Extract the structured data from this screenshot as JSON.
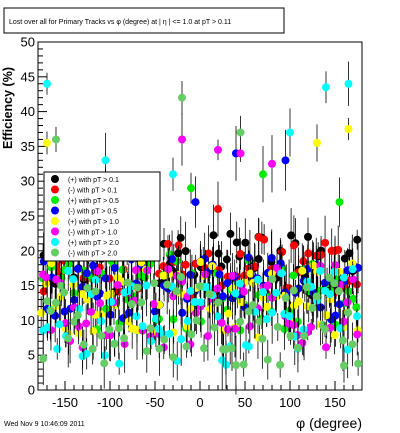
{
  "chart_data": {
    "type": "scatter",
    "title": "Lost over all for Primary Tracks vs φ (degree) at | η | <= 1.0 at pT > 0.11",
    "xlabel": "φ (degree)",
    "ylabel": "Efficiency (%)",
    "xlim": [
      -180,
      180
    ],
    "ylim": [
      0,
      50
    ],
    "xticks": [
      -150,
      -100,
      -50,
      0,
      50,
      100,
      150
    ],
    "yticks": [
      0,
      5,
      10,
      15,
      20,
      25,
      30,
      35,
      40,
      45,
      50
    ],
    "grid": false,
    "legend_position": "left-middle",
    "footer": "Wed Nov  9 10:46:09 2011",
    "colors": {
      "s1": "#000000",
      "s2": "#ff0000",
      "s3": "#00ee00",
      "s4": "#0000ff",
      "s5": "#ffff00",
      "s6": "#ff00ff",
      "s7": "#00ffff",
      "s8": "#66cc66"
    },
    "series": [
      {
        "name": "(+) with pT > 0.1",
        "color": "#000000",
        "seed": 11,
        "base": 18.0,
        "spread": 4.5,
        "extra_x": [
          -40,
          65,
          120
        ],
        "extra_y": [
          21,
          22,
          22
        ]
      },
      {
        "name": "(-) with pT > 0.1",
        "color": "#ff0000",
        "seed": 23,
        "base": 17.5,
        "spread": 4.5,
        "extra_x": [
          -150,
          -60,
          20,
          150
        ],
        "extra_y": [
          24,
          20,
          26,
          20
        ]
      },
      {
        "name": "(+) with pT > 0.5",
        "color": "#00ee00",
        "seed": 37,
        "base": 14.0,
        "spread": 5.5,
        "extra_x": [
          -10,
          70,
          155
        ],
        "extra_y": [
          29,
          31,
          27
        ]
      },
      {
        "name": "(-) with pT > 0.5",
        "color": "#0000ff",
        "seed": 41,
        "base": 15.0,
        "spread": 5.0,
        "extra_x": [
          -105,
          -5,
          40,
          95
        ],
        "extra_y": [
          28,
          27,
          34,
          33
        ]
      },
      {
        "name": "(+) with pT > 1.0",
        "color": "#ffff00",
        "seed": 53,
        "base": 13.0,
        "spread": 5.5,
        "extra_x": [
          -170,
          130,
          165
        ],
        "extra_y": [
          35.5,
          35.5,
          37.5
        ]
      },
      {
        "name": "(-) with pT > 1.0",
        "color": "#ff00ff",
        "seed": 67,
        "base": 12.0,
        "spread": 6.0,
        "extra_x": [
          -20,
          20,
          45,
          80
        ],
        "extra_y": [
          36,
          34.5,
          34,
          32.5
        ]
      },
      {
        "name": "(+) with pT > 2.0",
        "color": "#00ffff",
        "seed": 79,
        "base": 10.5,
        "spread": 7.0,
        "extra_x": [
          -170,
          -105,
          -30,
          100,
          140,
          165
        ],
        "extra_y": [
          44,
          33,
          31,
          37,
          43.5,
          44
        ]
      },
      {
        "name": "(-) with pT > 2.0",
        "color": "#66cc66",
        "seed": 97,
        "base": 10.0,
        "spread": 6.5,
        "extra_x": [
          -160,
          -20,
          45,
          160
        ],
        "extra_y": [
          36,
          42,
          37,
          3.5
        ]
      }
    ]
  }
}
